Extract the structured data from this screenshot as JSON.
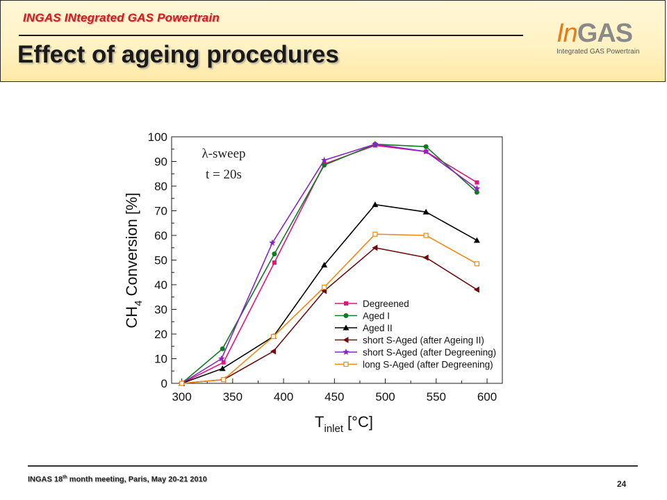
{
  "header": {
    "project_name": "INGAS INtegrated GAS Powertrain",
    "title": "Effect of ageing procedures"
  },
  "logo": {
    "in_text": "In",
    "gas_text": "GAS",
    "subtitle": "Integrated GAS Powertrain"
  },
  "footer": {
    "meeting_prefix": "INGAS 18",
    "meeting_sup": "th",
    "meeting_suffix": " month meeting, Paris, May 20-21 2010",
    "page_number": "24"
  },
  "colors": {
    "degreened": "#e3157d",
    "aged_i": "#0e7a22",
    "aged_ii": "#000000",
    "short_s_aged_ageing_ii": "#6e0c0c",
    "short_s_aged_degreening": "#8a22c8",
    "long_s_aged_degreening": "#ef8a12"
  },
  "chart_data": {
    "type": "line",
    "xlabel_main": "T",
    "xlabel_sub": "inlet",
    "xlabel_unit": "[°C]",
    "ylabel_main": "CH",
    "ylabel_sub": "4",
    "ylabel_rest": " Conversion [%]",
    "xlim": [
      290,
      615
    ],
    "ylim": [
      0,
      100
    ],
    "xticks": [
      300,
      350,
      400,
      450,
      500,
      550,
      600
    ],
    "yticks": [
      0,
      10,
      20,
      30,
      40,
      50,
      60,
      70,
      80,
      90,
      100
    ],
    "grid": false,
    "legend_position": "bottom-right",
    "annotations": [
      "λ-sweep",
      "t = 20s"
    ],
    "series": [
      {
        "name": "Degreened",
        "color": "#e3157d",
        "marker": "square",
        "x": [
          300,
          341,
          391,
          440,
          490,
          540,
          590
        ],
        "y": [
          0,
          8.5,
          49,
          89,
          96.5,
          94,
          81.5
        ]
      },
      {
        "name": "Aged I",
        "color": "#0e7a22",
        "marker": "circle",
        "x": [
          300,
          340,
          391,
          440,
          490,
          540,
          590
        ],
        "y": [
          0,
          14,
          52.5,
          88.5,
          97,
          96,
          77.5
        ]
      },
      {
        "name": "Aged II",
        "color": "#000000",
        "marker": "triangle-up",
        "x": [
          300,
          340,
          390,
          440,
          490,
          540,
          590
        ],
        "y": [
          0,
          6,
          19,
          48,
          72.5,
          69.5,
          58
        ]
      },
      {
        "name": "short S-Aged (after Ageing II)",
        "color": "#6e0c0c",
        "marker": "triangle-left",
        "x": [
          300,
          341,
          390,
          440,
          490,
          540,
          590
        ],
        "y": [
          0,
          1.5,
          13,
          37.5,
          55,
          51,
          38
        ]
      },
      {
        "name": "short S-Aged (after Degreening)",
        "color": "#8a22c8",
        "marker": "star",
        "x": [
          300,
          339,
          389,
          440,
          490,
          540,
          590
        ],
        "y": [
          0,
          10,
          57,
          90.5,
          97,
          94,
          79
        ]
      },
      {
        "name": "long S-Aged (after Degreening)",
        "color": "#ef8a12",
        "marker": "open-square",
        "x": [
          300,
          341,
          390,
          440,
          490,
          540,
          590
        ],
        "y": [
          0,
          1.5,
          19,
          39,
          60.5,
          60,
          48.5
        ]
      }
    ]
  }
}
